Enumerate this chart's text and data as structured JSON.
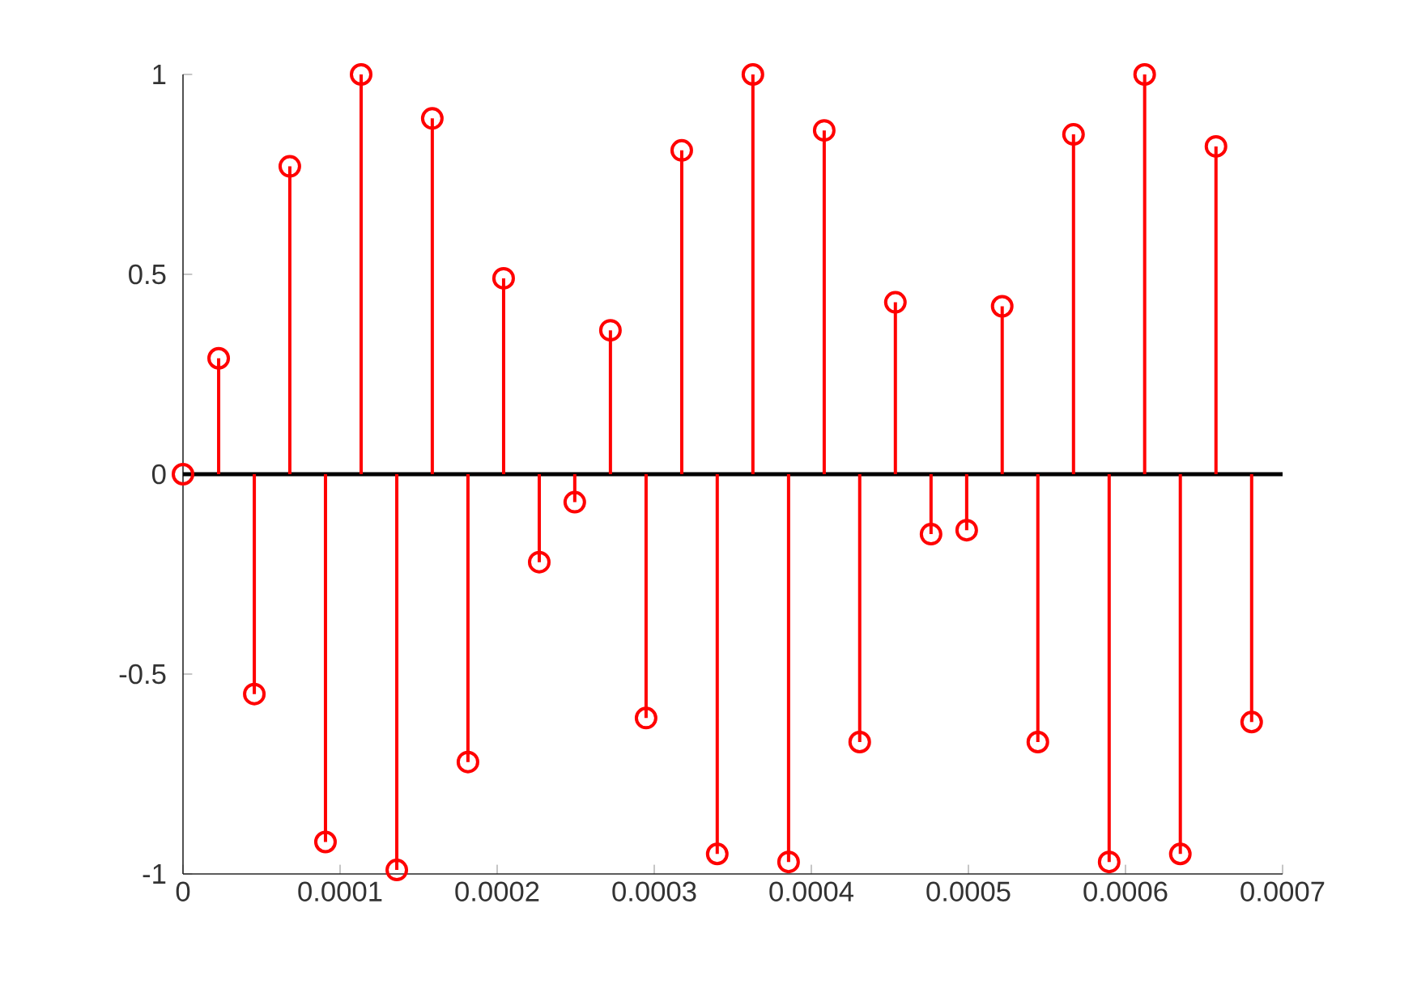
{
  "chart_data": {
    "type": "lollipop",
    "x": [
      0,
      2.27e-05,
      4.54e-05,
      6.8e-05,
      9.07e-05,
      0.0001134,
      0.0001361,
      0.0001587,
      0.0001814,
      0.0002041,
      0.0002268,
      0.0002494,
      0.0002721,
      0.0002948,
      0.0003175,
      0.0003401,
      0.0003628,
      0.0003855,
      0.0004082,
      0.0004308,
      0.0004535,
      0.0004762,
      0.0004989,
      0.0005215,
      0.0005442,
      0.0005669,
      0.0005896,
      0.0006122,
      0.0006349,
      0.0006576,
      0.0006803
    ],
    "values": [
      0,
      0.29,
      -0.55,
      0.77,
      -0.92,
      1.0,
      -0.99,
      0.89,
      -0.72,
      0.49,
      -0.22,
      -0.07,
      0.36,
      -0.61,
      0.81,
      -0.95,
      1.0,
      -0.97,
      0.86,
      -0.67,
      0.43,
      -0.15,
      -0.14,
      0.42,
      -0.67,
      0.85,
      -0.97,
      1.0,
      -0.95,
      0.82,
      -0.62
    ],
    "color": "#ff0000",
    "marker": "circle",
    "xlim": [
      0,
      0.0007
    ],
    "ylim": [
      -1,
      1
    ],
    "xticks": [
      0,
      0.0001,
      0.0002,
      0.0003,
      0.0004,
      0.0005,
      0.0006,
      0.0007
    ],
    "yticks": [
      -1,
      -0.5,
      0,
      0.5,
      1
    ]
  }
}
